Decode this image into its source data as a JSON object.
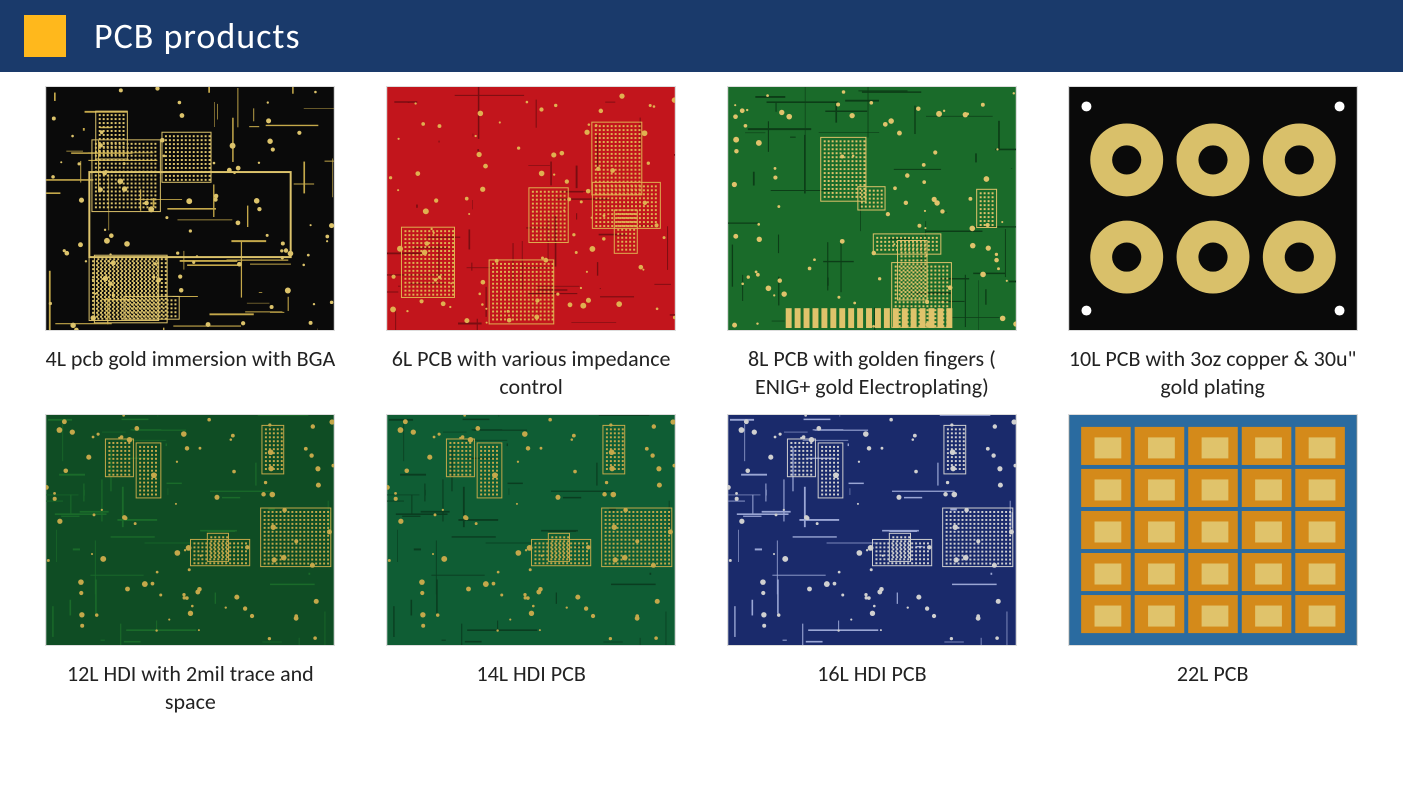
{
  "header": {
    "title": "PCB  products",
    "accent_color": "#ffb81c",
    "bg_color": "#1a3a6b",
    "title_color": "#ffffff",
    "title_fontsize": 36
  },
  "layout": {
    "columns": 4,
    "rows": 2,
    "page_bg": "#ffffff",
    "caption_fontsize": 22,
    "caption_color": "#222222"
  },
  "products": [
    {
      "id": "p4l",
      "caption": "4L pcb gold immersion with BGA",
      "substrate_color": "#0a0a0a",
      "trace_color": "#c4a84a",
      "pad_color": "#dcc36b",
      "style": "dense-bga"
    },
    {
      "id": "p6l",
      "caption": "6L PCB with various impedance control",
      "substrate_color": "#c2151c",
      "trace_color": "#7a0d11",
      "pad_color": "#e0b050",
      "style": "dense-grid"
    },
    {
      "id": "p8l",
      "caption": "8L PCB with golden fingers ( ENIG+ gold Electroplating)",
      "substrate_color": "#1a6b2a",
      "trace_color": "#0c3d17",
      "pad_color": "#e0c36b",
      "style": "gold-fingers"
    },
    {
      "id": "p10l",
      "caption": "10L PCB with 3oz copper  & 30u\" gold plating",
      "substrate_color": "#0a0a0a",
      "trace_color": "#c4a84a",
      "pad_color": "#d9c06a",
      "style": "round-panel"
    },
    {
      "id": "p12l",
      "caption": "12L HDI with 2mil trace and space",
      "substrate_color": "#0f4d24",
      "trace_color": "#1a6b2a",
      "pad_color": "#c4a84a",
      "style": "hdi-dense"
    },
    {
      "id": "p14l",
      "caption": "14L HDI PCB",
      "substrate_color": "#0f5d34",
      "trace_color": "#0a3d20",
      "pad_color": "#c4a84a",
      "style": "hdi-dense"
    },
    {
      "id": "p16l",
      "caption": "16L HDI PCB",
      "substrate_color": "#1a2a6b",
      "trace_color": "#9aa6d4",
      "pad_color": "#d0d0d0",
      "style": "hdi-dense"
    },
    {
      "id": "p22l",
      "caption": "22L PCB",
      "substrate_color": "#d48a1a",
      "trace_color": "#2a6ba0",
      "pad_color": "#e0c36b",
      "style": "panel-array"
    }
  ]
}
